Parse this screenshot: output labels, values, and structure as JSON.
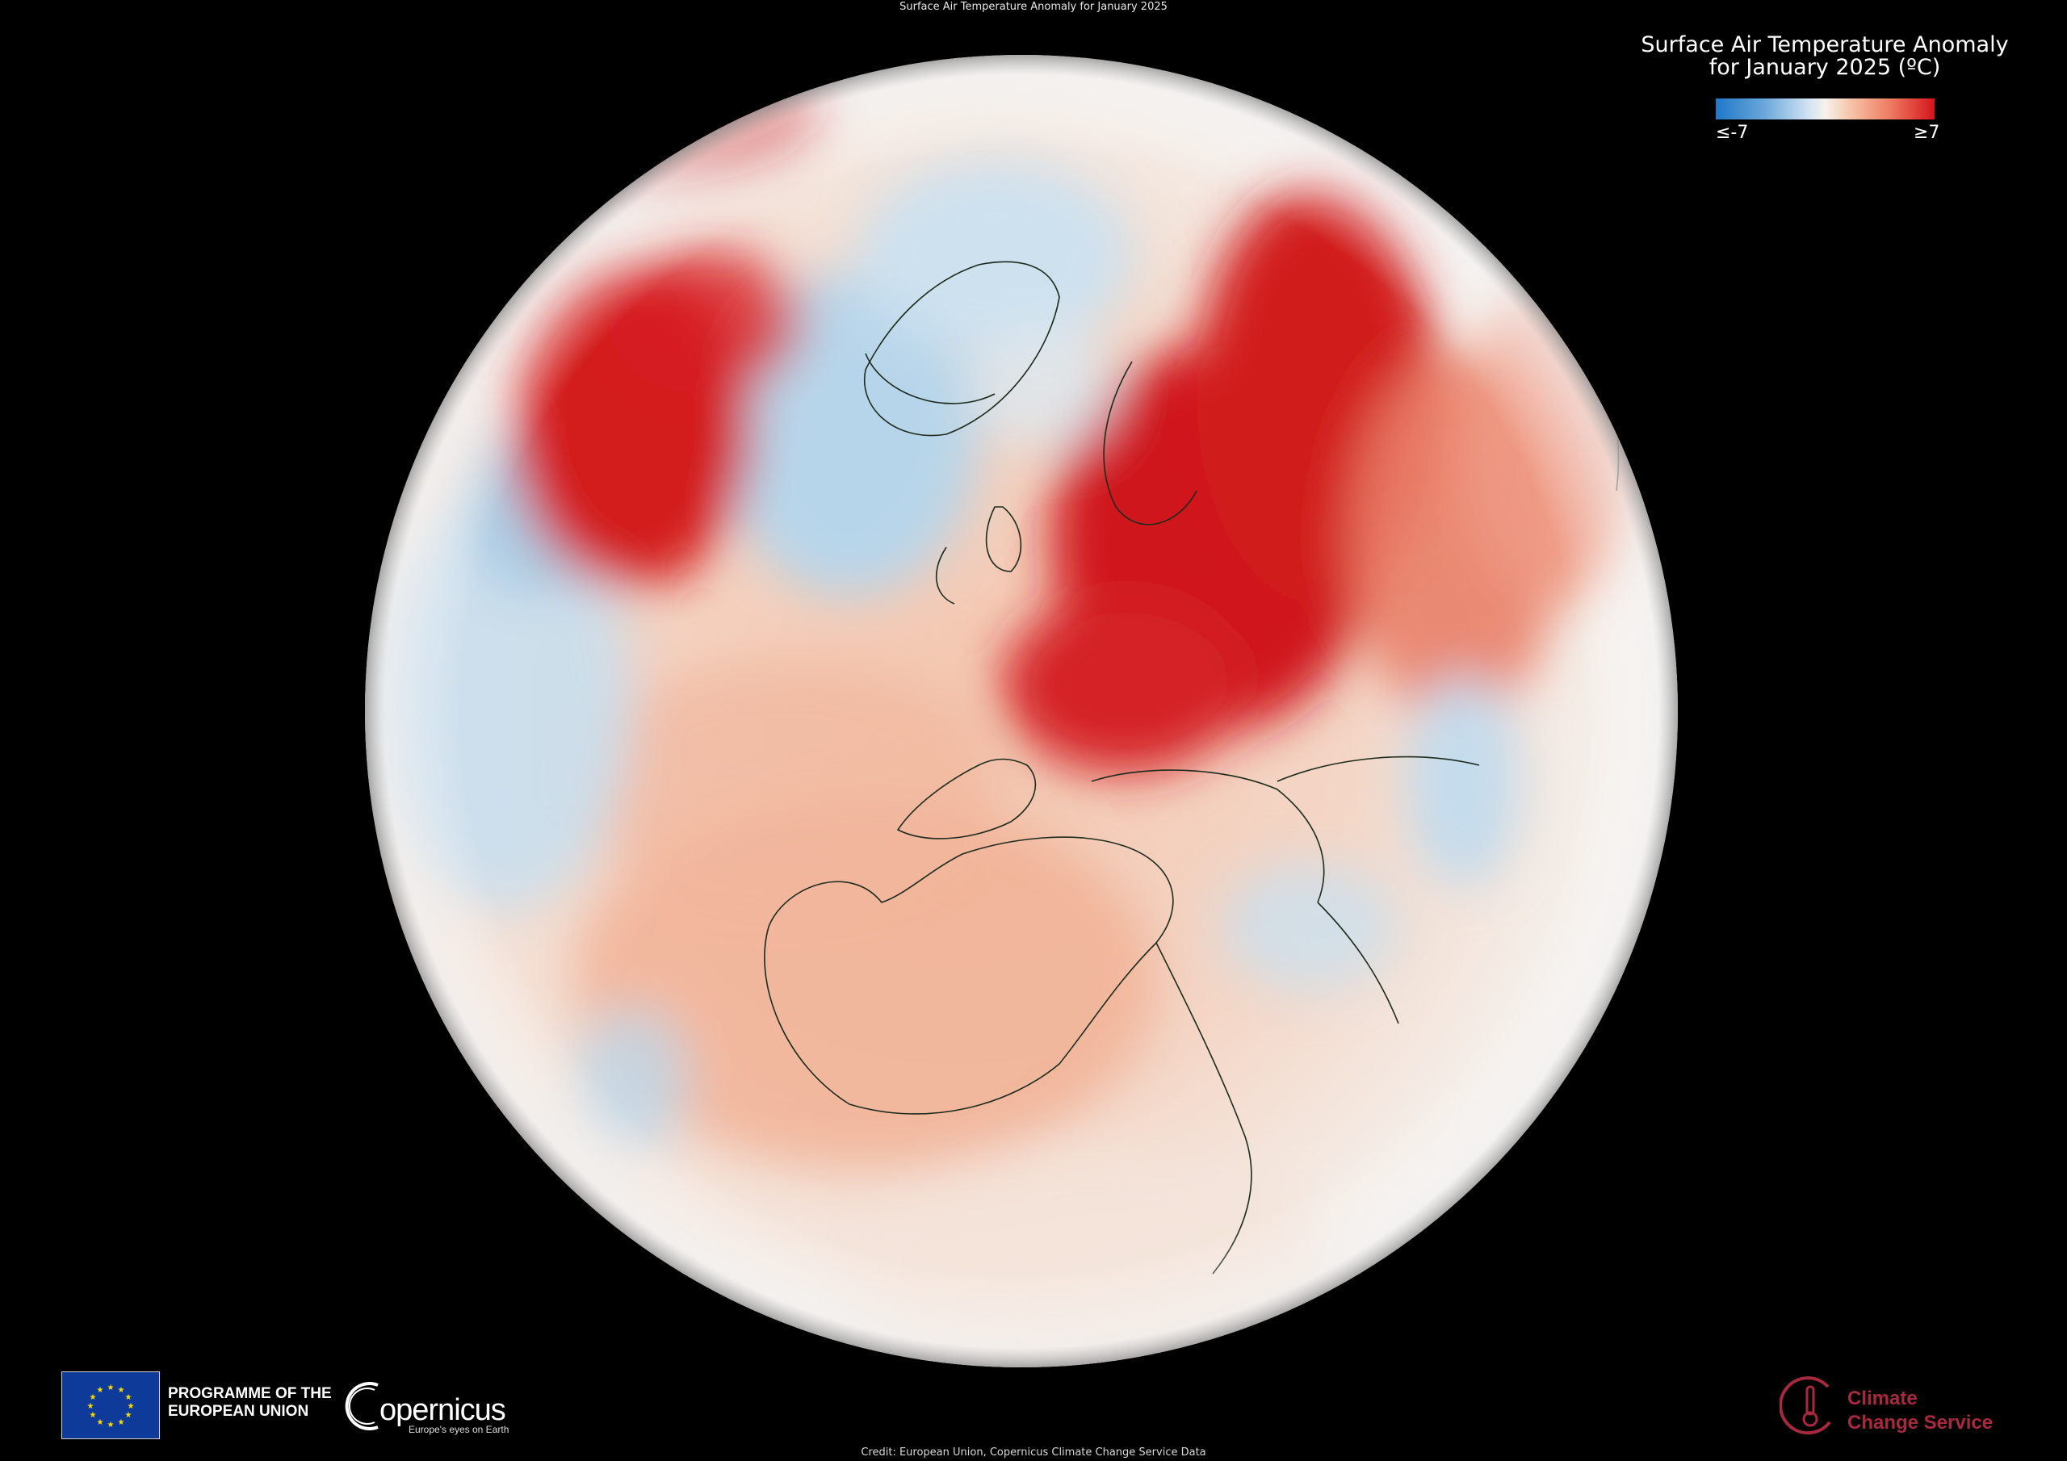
{
  "page": {
    "top_title": "Surface Air Temperature Anomaly for January 2025",
    "credit": "Credit: European Union, Copernicus Climate Change Service Data"
  },
  "legend": {
    "title_line1": "Surface Air Temperature Anomaly",
    "title_line2": "for January 2025 (ºC)",
    "min_label": "≤-7",
    "max_label": "≥7",
    "colors": {
      "cold": "#1f78c8",
      "neutral": "#f7f2ec",
      "warm": "#d4141b"
    }
  },
  "map": {
    "projection": "orthographic globe centred on Europe / North Atlantic",
    "variable": "surface air temperature anomaly",
    "colors": {
      "strong_warm": "#cc1417",
      "mild_warm": "#f2b9a0",
      "mild_cold": "#bcd8ec",
      "neutral": "#f6efe9",
      "coastline": "#1a2a1a"
    }
  },
  "logos": {
    "eu_programme_line1": "PROGRAMME OF THE",
    "eu_programme_line2": "EUROPEAN UNION",
    "copernicus_word": "opernicus",
    "copernicus_tagline": "Europe's eyes on Earth",
    "c3s_line1": "Climate",
    "c3s_line2": "Change Service"
  }
}
